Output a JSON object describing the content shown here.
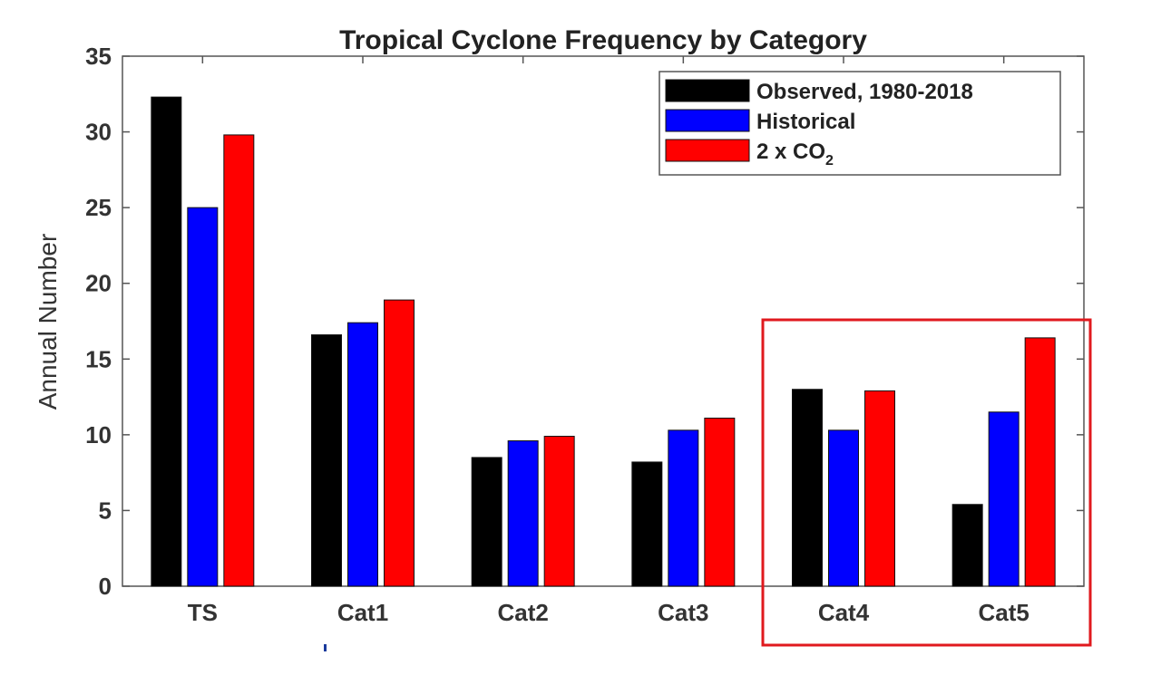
{
  "chart_data": {
    "type": "bar",
    "title": "Tropical Cyclone Frequency by Category",
    "xlabel": "",
    "ylabel": "Annual Number",
    "categories": [
      "TS",
      "Cat1",
      "Cat2",
      "Cat3",
      "Cat4",
      "Cat5"
    ],
    "series": [
      {
        "name": "Observed, 1980-2018",
        "color": "#000000",
        "values": [
          32.3,
          16.6,
          8.5,
          8.2,
          13.0,
          5.4
        ]
      },
      {
        "name": "Historical",
        "color": "#0000ff",
        "values": [
          25.0,
          17.4,
          9.6,
          10.3,
          10.3,
          11.5
        ]
      },
      {
        "name": "2 x CO2",
        "color": "#ff0000",
        "values": [
          29.8,
          18.9,
          9.9,
          11.1,
          12.9,
          16.4
        ]
      }
    ],
    "ylim": [
      0,
      35
    ],
    "yticks": [
      0,
      5,
      10,
      15,
      20,
      25,
      30,
      35
    ],
    "grid": false,
    "legend": "top-right",
    "highlight": {
      "categories": [
        "Cat4",
        "Cat5"
      ],
      "color": "#e0191e"
    }
  }
}
